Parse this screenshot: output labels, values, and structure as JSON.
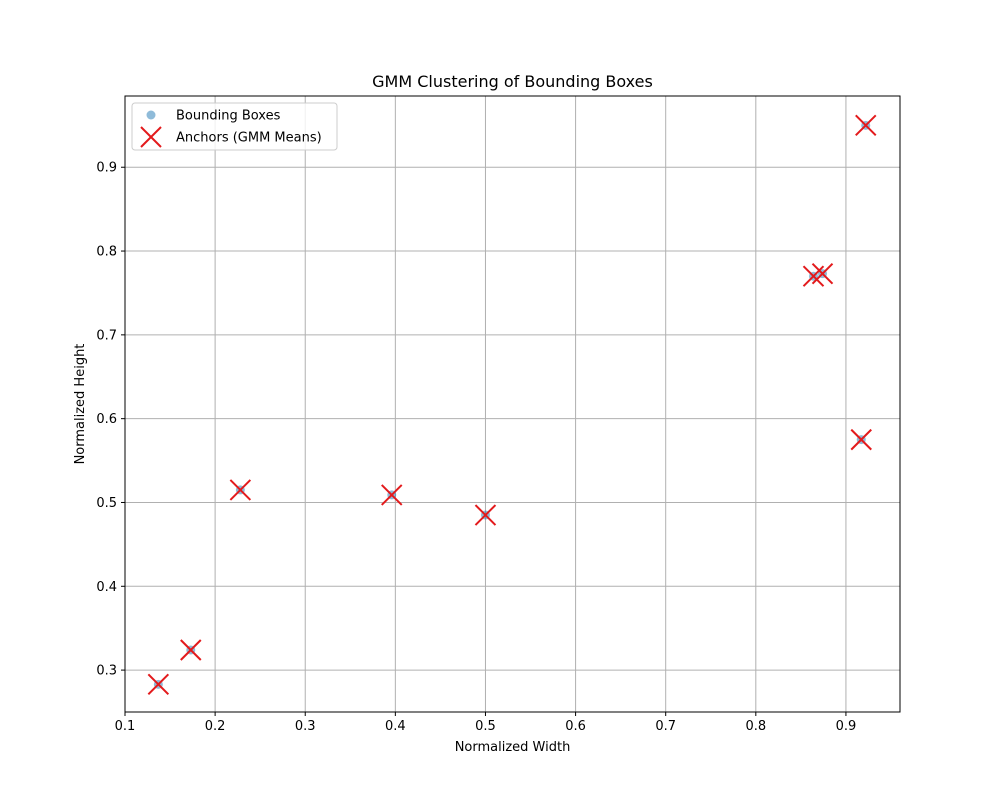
{
  "chart_data": {
    "type": "scatter",
    "title": "GMM Clustering of Bounding Boxes",
    "xlabel": "Normalized Width",
    "ylabel": "Normalized Height",
    "xlim": [
      0.1,
      0.96
    ],
    "ylim": [
      0.25,
      0.985
    ],
    "xticks": [
      0.1,
      0.2,
      0.3,
      0.4,
      0.5,
      0.6,
      0.7,
      0.8,
      0.9
    ],
    "xtick_labels": [
      "0.1",
      "0.2",
      "0.3",
      "0.4",
      "0.5",
      "0.6",
      "0.7",
      "0.8",
      "0.9"
    ],
    "yticks": [
      0.3,
      0.4,
      0.5,
      0.6,
      0.7,
      0.8,
      0.9
    ],
    "ytick_labels": [
      "0.3",
      "0.4",
      "0.5",
      "0.6",
      "0.7",
      "0.8",
      "0.9"
    ],
    "grid": true,
    "legend_position": "top-left",
    "series": [
      {
        "name": "Bounding Boxes",
        "marker": "circle",
        "color": "#1f77b4",
        "points": [
          {
            "x": 0.137,
            "y": 0.283
          },
          {
            "x": 0.173,
            "y": 0.324
          },
          {
            "x": 0.228,
            "y": 0.515
          },
          {
            "x": 0.396,
            "y": 0.509
          },
          {
            "x": 0.5,
            "y": 0.485
          },
          {
            "x": 0.864,
            "y": 0.77
          },
          {
            "x": 0.874,
            "y": 0.773
          },
          {
            "x": 0.917,
            "y": 0.575
          },
          {
            "x": 0.922,
            "y": 0.95
          }
        ]
      },
      {
        "name": "Anchors (GMM Means)",
        "marker": "x",
        "color": "#e31a1c",
        "points": [
          {
            "x": 0.137,
            "y": 0.283
          },
          {
            "x": 0.173,
            "y": 0.324
          },
          {
            "x": 0.228,
            "y": 0.515
          },
          {
            "x": 0.396,
            "y": 0.509
          },
          {
            "x": 0.5,
            "y": 0.485
          },
          {
            "x": 0.864,
            "y": 0.77
          },
          {
            "x": 0.874,
            "y": 0.773
          },
          {
            "x": 0.917,
            "y": 0.575
          },
          {
            "x": 0.922,
            "y": 0.95
          }
        ]
      }
    ]
  }
}
